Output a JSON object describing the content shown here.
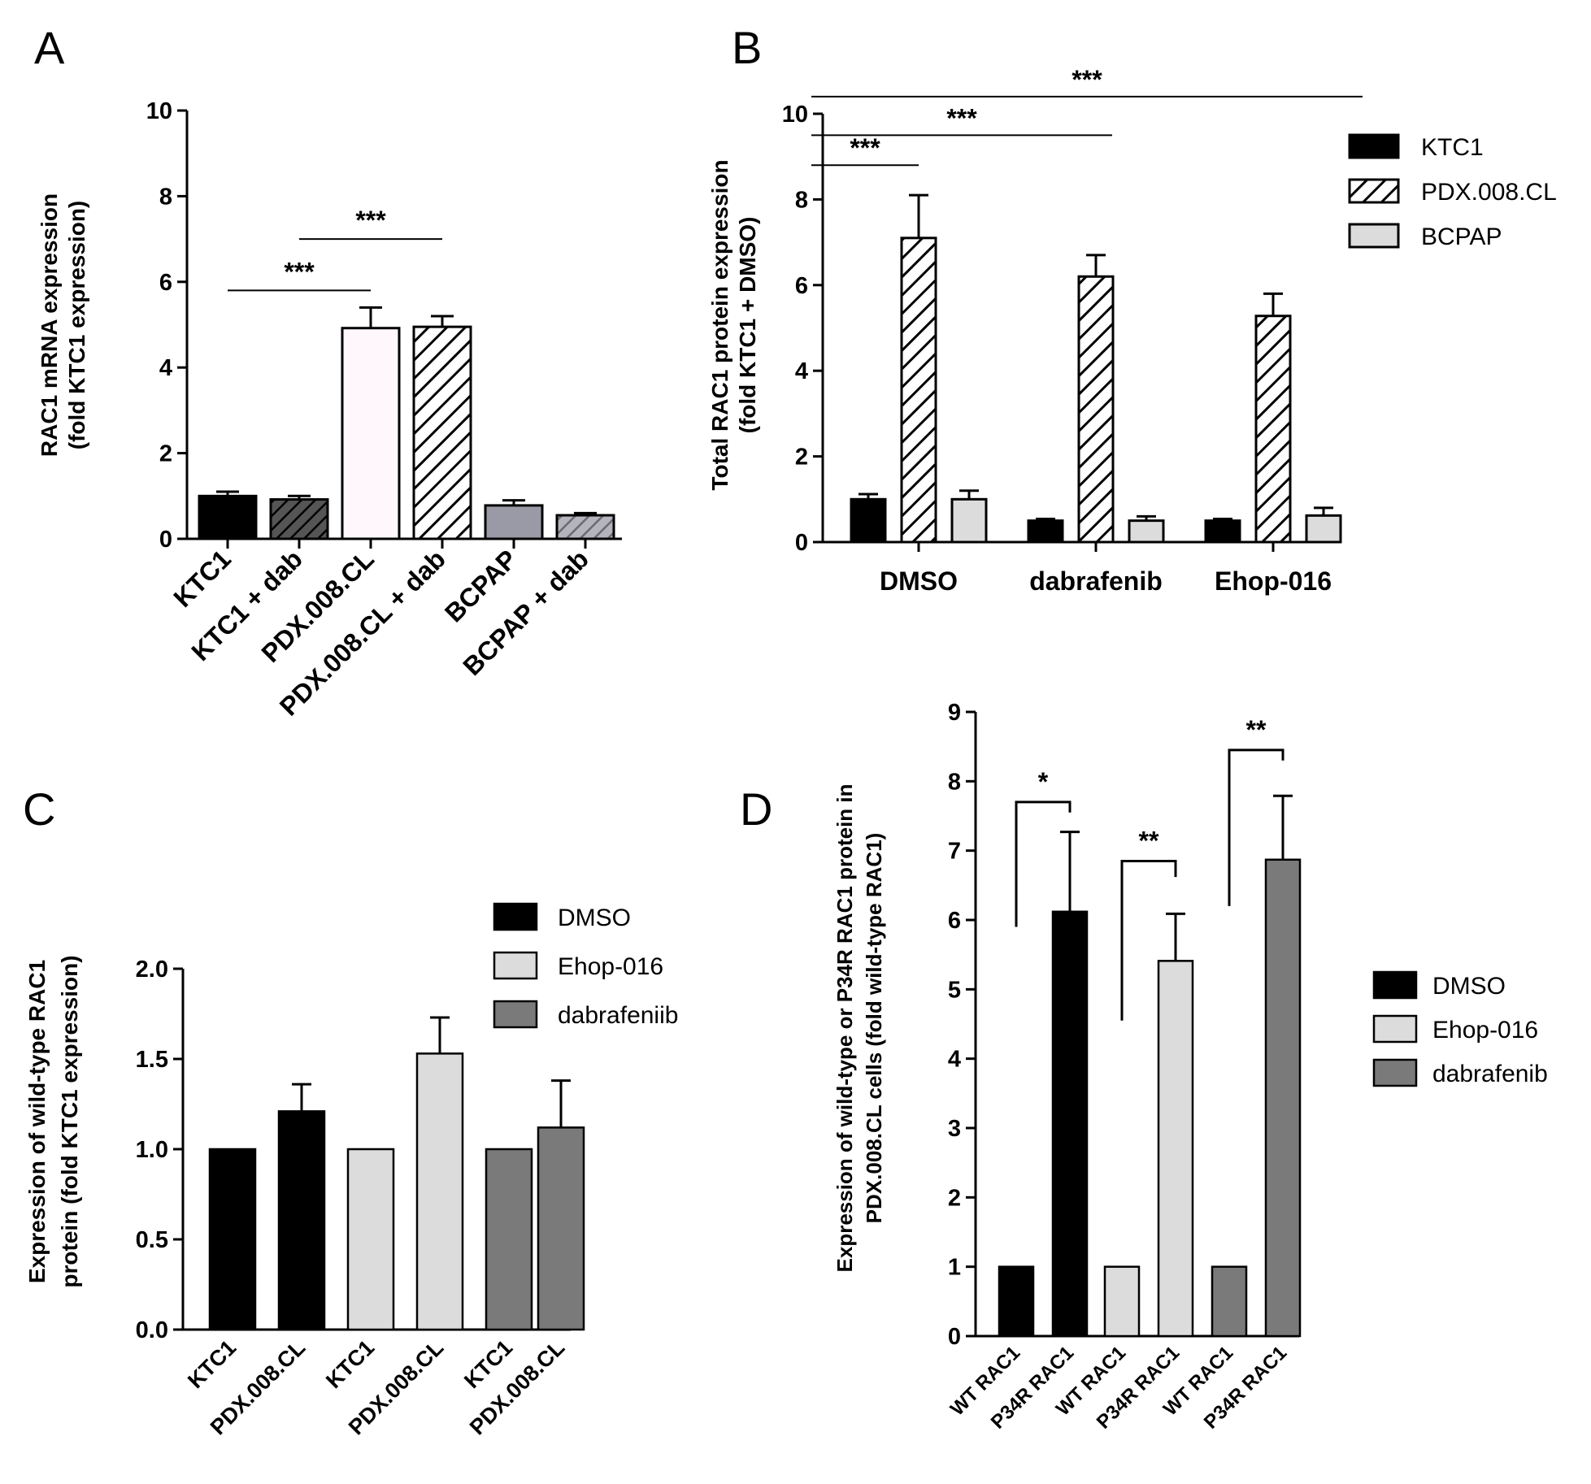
{
  "colors": {
    "black": "#000000",
    "light": "#dcdcdc",
    "mid": "#7a7a7a",
    "slate": "#9a9aa6",
    "pink": "#fff7fb",
    "hatchLine": "#000000"
  },
  "chart_data": [
    {
      "panel": "A",
      "type": "bar",
      "ylabel": [
        "RAC1 mRNA expression",
        "(fold KTC1 expression)"
      ],
      "ylim": [
        0,
        10
      ],
      "yticks": [
        0,
        2,
        4,
        6,
        8,
        10
      ],
      "categories": [
        "KTC1",
        "KTC1 + dab",
        "PDX.008.CL",
        "PDX.008.CL + dab",
        "BCPAP",
        "BCPAP + dab"
      ],
      "values": [
        1.0,
        0.92,
        4.92,
        4.95,
        0.78,
        0.55
      ],
      "errors": [
        0.1,
        0.08,
        0.48,
        0.25,
        0.12,
        0.05
      ],
      "fills": [
        "black",
        "hatch-dark",
        "pink",
        "hatch-white",
        "slate",
        "hatch-slate"
      ],
      "significance": [
        {
          "from": 0,
          "to": 2,
          "y": 5.8,
          "label": "***"
        },
        {
          "from": 1,
          "to": 3,
          "y": 7.0,
          "label": "***"
        }
      ]
    },
    {
      "panel": "B",
      "type": "bar",
      "ylabel": [
        "Total RAC1 protein expression",
        "(fold KTC1 + DMSO)"
      ],
      "ylim": [
        0,
        10
      ],
      "yticks": [
        0,
        2,
        4,
        6,
        8,
        10
      ],
      "categories": [
        "DMSO",
        "dabrafenib",
        "Ehop-016"
      ],
      "series": [
        {
          "name": "KTC1",
          "values": [
            1.0,
            0.5,
            0.5
          ],
          "errors": [
            0.12,
            0.04,
            0.04
          ],
          "fill": "black"
        },
        {
          "name": "PDX.008.CL",
          "values": [
            7.1,
            6.2,
            5.28
          ],
          "errors": [
            1.0,
            0.5,
            0.52
          ],
          "fill": "hatch-white"
        },
        {
          "name": "BCPAP",
          "values": [
            1.0,
            0.5,
            0.62
          ],
          "errors": [
            0.2,
            0.1,
            0.18
          ],
          "fill": "light"
        }
      ],
      "significance": [
        {
          "from": [
            0,
            0
          ],
          "to": [
            0,
            1
          ],
          "y": 8.8,
          "label": "***"
        },
        {
          "from": [
            0,
            0
          ],
          "to": [
            1,
            1
          ],
          "y": 9.5,
          "label": "***"
        },
        {
          "from": [
            0,
            0
          ],
          "to": [
            2,
            1
          ],
          "y": 10.4,
          "label": "***"
        }
      ]
    },
    {
      "panel": "C",
      "type": "bar",
      "ylabel": [
        "Expression of wild-type RAC1",
        "protein (fold KTC1 expression)"
      ],
      "ylim": [
        0,
        2.0
      ],
      "yticks": [
        "0.0",
        "0.5",
        "1.0",
        "1.5",
        "2.0"
      ],
      "categories": [
        "KTC1",
        "PDX.008.CL",
        "KTC1",
        "PDX.008.CL",
        "KTC1",
        "PDX.008.CL"
      ],
      "values": [
        1.0,
        1.21,
        1.0,
        1.53,
        1.0,
        1.12
      ],
      "errors": [
        0,
        0.15,
        0,
        0.2,
        0,
        0.26
      ],
      "fills": [
        "black",
        "black",
        "light",
        "light",
        "mid",
        "mid"
      ],
      "legend": [
        {
          "name": "DMSO",
          "fill": "black"
        },
        {
          "name": "Ehop-016",
          "fill": "light"
        },
        {
          "name": "dabrafeniib",
          "fill": "mid"
        }
      ]
    },
    {
      "panel": "D",
      "type": "bar",
      "ylabel": [
        "Expression of wild-type or P34R RAC1 protein in",
        "PDX.008.CL cells (fold wild-type RAC1)"
      ],
      "ylim": [
        0,
        9
      ],
      "yticks": [
        0,
        1,
        2,
        3,
        4,
        5,
        6,
        7,
        8,
        9
      ],
      "categories": [
        "WT RAC1",
        "P34R RAC1",
        "WT RAC1",
        "P34R RAC1",
        "WT RAC1",
        "P34R RAC1"
      ],
      "values": [
        1.0,
        6.12,
        1.0,
        5.41,
        1.0,
        6.87
      ],
      "errors": [
        0,
        1.15,
        0,
        0.68,
        0,
        0.92
      ],
      "fills": [
        "black",
        "black",
        "light",
        "light",
        "mid",
        "mid"
      ],
      "legend": [
        {
          "name": "DMSO",
          "fill": "black"
        },
        {
          "name": "Ehop-016",
          "fill": "light"
        },
        {
          "name": "dabrafenib",
          "fill": "mid"
        }
      ],
      "significance": [
        {
          "from": 0,
          "to": 1,
          "y": 7.7,
          "leftDrop": 5.9,
          "rightDrop": 7.55,
          "label": "*"
        },
        {
          "from": 2,
          "to": 3,
          "y": 6.85,
          "leftDrop": 4.55,
          "rightDrop": 6.62,
          "label": "**"
        },
        {
          "from": 4,
          "to": 5,
          "y": 8.45,
          "leftDrop": 6.2,
          "rightDrop": 8.3,
          "label": "**"
        }
      ]
    }
  ],
  "panels": {
    "A": "A",
    "B": "B",
    "C": "C",
    "D": "D"
  }
}
